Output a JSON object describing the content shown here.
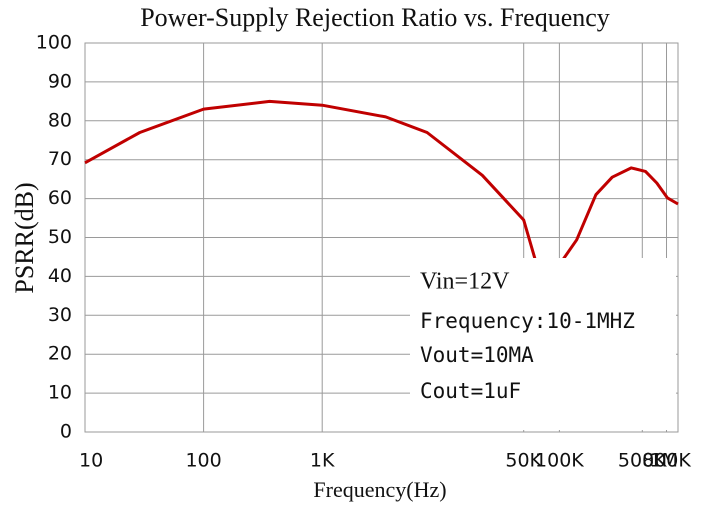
{
  "chart_data": {
    "type": "line",
    "title": "Power-Supply Rejection Ratio vs. Frequency",
    "xlabel": "Frequency(Hz)",
    "ylabel": "PSRR(dB)",
    "xscale": "log",
    "grid": true,
    "xlim": [
      10,
      1000000
    ],
    "xticks": [
      10,
      100,
      {
        "value": 1000,
        "label": "1K"
      },
      {
        "value": 50000,
        "label": "50K"
      },
      {
        "value": 100000,
        "label": "100K"
      },
      {
        "value": 500000,
        "label": "500K"
      },
      {
        "value": 800000,
        "label": "800K"
      },
      {
        "value": 1000000,
        "label": "1M"
      }
    ],
    "ylim": [
      0,
      100
    ],
    "yticks": [
      0,
      10,
      20,
      30,
      40,
      50,
      60,
      70,
      80,
      90,
      100
    ],
    "x": [
      10,
      29,
      100,
      360,
      1000,
      3430,
      7660,
      22400,
      50000,
      63400,
      80400,
      100000,
      140000,
      203000,
      279000,
      404000,
      532000,
      662000,
      813000,
      1000000
    ],
    "series": [
      {
        "name": "PSRR",
        "color": "#c00000",
        "values": [
          69.2,
          77,
          83,
          85,
          84,
          81,
          77,
          66,
          54.5,
          43.7,
          41.4,
          43,
          49.4,
          61,
          65.5,
          67.9,
          67,
          64,
          60.2,
          58.6
        ]
      }
    ],
    "annotations": [
      "Vin=12V",
      "Frequency:10-1MHZ",
      "Vout=10MA",
      "Cout=1uF"
    ]
  }
}
